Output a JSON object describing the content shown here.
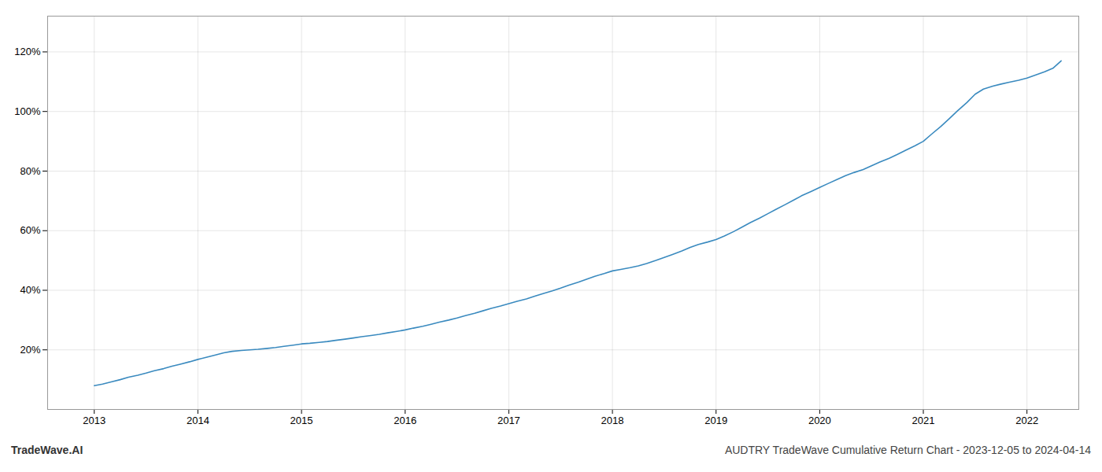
{
  "chart_data": {
    "type": "line",
    "title": "AUDTRY TradeWave Cumulative Return Chart - 2023-12-05 to 2024-04-14",
    "annotations": [
      "TradeWave.AI"
    ],
    "color": "#3a8abf",
    "grid": true,
    "xlim": [
      2012.55,
      2022.5
    ],
    "xticks": [
      2013,
      2014,
      2015,
      2016,
      2017,
      2018,
      2019,
      2020,
      2021,
      2022
    ],
    "ylim": [
      0.0,
      1.32
    ],
    "yticks": [
      {
        "value": 0.2,
        "label": "20%"
      },
      {
        "value": 0.4,
        "label": "40%"
      },
      {
        "value": 0.6,
        "label": "60%"
      },
      {
        "value": 0.8,
        "label": "80%"
      },
      {
        "value": 1.0,
        "label": "100%"
      },
      {
        "value": 1.2,
        "label": "120%"
      }
    ],
    "x": [
      2013.0,
      2013.08,
      2013.17,
      2013.25,
      2013.33,
      2013.42,
      2013.5,
      2013.58,
      2013.67,
      2013.75,
      2013.83,
      2013.92,
      2014.0,
      2014.08,
      2014.17,
      2014.25,
      2014.33,
      2014.42,
      2014.5,
      2014.58,
      2014.67,
      2014.75,
      2014.83,
      2014.92,
      2015.0,
      2015.08,
      2015.17,
      2015.25,
      2015.33,
      2015.42,
      2015.5,
      2015.58,
      2015.67,
      2015.75,
      2015.83,
      2015.92,
      2016.0,
      2016.08,
      2016.17,
      2016.25,
      2016.33,
      2016.42,
      2016.5,
      2016.58,
      2016.67,
      2016.75,
      2016.83,
      2016.92,
      2017.0,
      2017.08,
      2017.17,
      2017.25,
      2017.33,
      2017.42,
      2017.5,
      2017.58,
      2017.67,
      2017.75,
      2017.83,
      2017.92,
      2018.0,
      2018.08,
      2018.17,
      2018.25,
      2018.33,
      2018.42,
      2018.5,
      2018.58,
      2018.67,
      2018.75,
      2018.83,
      2018.92,
      2019.0,
      2019.08,
      2019.17,
      2019.25,
      2019.33,
      2019.42,
      2019.5,
      2019.58,
      2019.67,
      2019.75,
      2019.83,
      2019.92,
      2020.0,
      2020.08,
      2020.17,
      2020.25,
      2020.33,
      2020.42,
      2020.5,
      2020.58,
      2020.67,
      2020.75,
      2020.83,
      2020.92,
      2021.0,
      2021.08,
      2021.17,
      2021.25,
      2021.33,
      2021.42,
      2021.5,
      2021.58,
      2021.67,
      2021.75,
      2021.83,
      2021.92,
      2022.0,
      2022.08,
      2022.17,
      2022.25,
      2022.33
    ],
    "values": [
      0.08,
      0.085,
      0.093,
      0.1,
      0.108,
      0.115,
      0.122,
      0.13,
      0.137,
      0.145,
      0.152,
      0.16,
      0.168,
      0.175,
      0.183,
      0.19,
      0.195,
      0.198,
      0.2,
      0.202,
      0.205,
      0.208,
      0.212,
      0.216,
      0.22,
      0.222,
      0.225,
      0.228,
      0.232,
      0.236,
      0.24,
      0.244,
      0.248,
      0.252,
      0.257,
      0.262,
      0.267,
      0.273,
      0.279,
      0.286,
      0.293,
      0.3,
      0.307,
      0.315,
      0.323,
      0.331,
      0.339,
      0.347,
      0.355,
      0.363,
      0.371,
      0.38,
      0.389,
      0.398,
      0.407,
      0.417,
      0.427,
      0.437,
      0.447,
      0.456,
      0.465,
      0.47,
      0.476,
      0.482,
      0.49,
      0.5,
      0.51,
      0.52,
      0.532,
      0.544,
      0.554,
      0.562,
      0.57,
      0.582,
      0.597,
      0.612,
      0.627,
      0.642,
      0.657,
      0.672,
      0.688,
      0.703,
      0.718,
      0.732,
      0.745,
      0.758,
      0.772,
      0.785,
      0.795,
      0.805,
      0.818,
      0.83,
      0.843,
      0.856,
      0.87,
      0.885,
      0.9,
      0.924,
      0.95,
      0.976,
      1.002,
      1.03,
      1.058,
      1.075,
      1.085,
      1.092,
      1.098,
      1.105,
      1.112,
      1.122,
      1.133,
      1.145,
      1.17
    ]
  }
}
